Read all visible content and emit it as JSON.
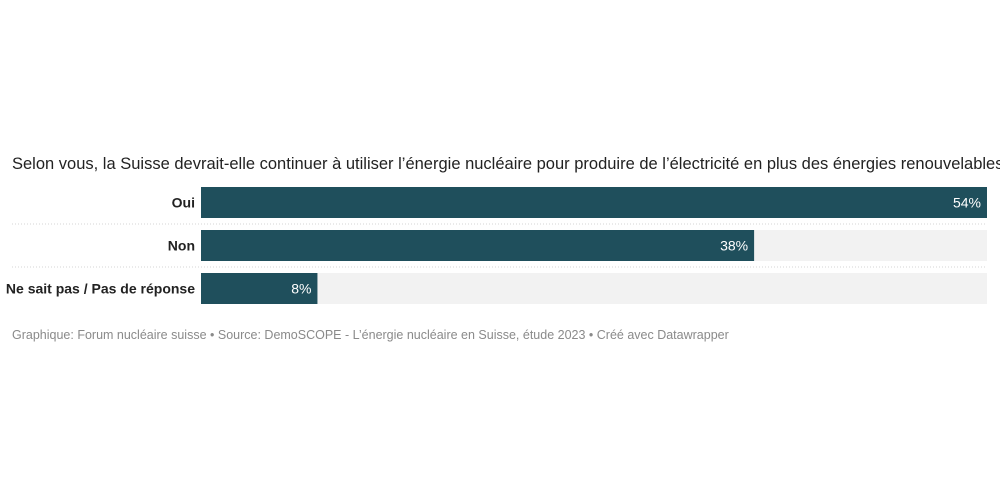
{
  "chart_data": {
    "type": "bar",
    "orientation": "horizontal",
    "title": "Selon vous, la Suisse devrait-elle continuer à utiliser l’énergie nucléaire pour produire de l’électricité en plus des énergies renouvelables?",
    "categories": [
      "Oui",
      "Non",
      "Ne sait pas / Pas de réponse"
    ],
    "values": [
      54,
      38,
      8
    ],
    "value_labels": [
      "54%",
      "38%",
      "8%"
    ],
    "xlim": [
      0,
      54
    ],
    "grid": false,
    "bar_color": "#1f4f5c",
    "track_color": "#f2f2f2",
    "separator_color": "#d6d6d6"
  },
  "footer": {
    "text": "Graphique: Forum nucléaire suisse • Source: DemoSCOPE - L’énergie nucléaire en Suisse, étude 2023 • Créé avec Datawrapper"
  }
}
